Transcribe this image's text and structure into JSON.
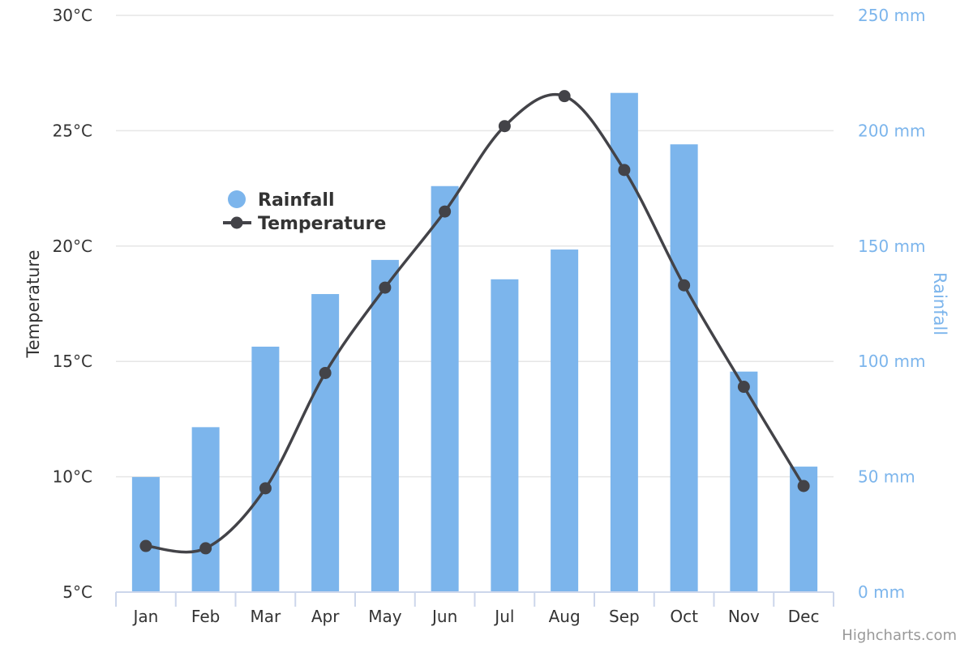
{
  "chart_data": {
    "type": "bar",
    "categories": [
      "Jan",
      "Feb",
      "Mar",
      "Apr",
      "May",
      "Jun",
      "Jul",
      "Aug",
      "Sep",
      "Oct",
      "Nov",
      "Dec"
    ],
    "series": [
      {
        "name": "Rainfall",
        "type": "bar",
        "axis": "right",
        "color": "#7cb5ec",
        "values": [
          49.9,
          71.5,
          106.4,
          129.2,
          144.0,
          176.0,
          135.6,
          148.5,
          216.4,
          194.1,
          95.6,
          54.4
        ]
      },
      {
        "name": "Temperature",
        "type": "line",
        "axis": "left",
        "color": "#434348",
        "values": [
          7.0,
          6.9,
          9.5,
          14.5,
          18.2,
          21.5,
          25.2,
          26.5,
          23.3,
          18.3,
          13.9,
          9.6
        ]
      }
    ],
    "left_axis": {
      "title": "Temperature",
      "ylim": [
        5,
        30
      ],
      "ticks": [
        "5°C",
        "10°C",
        "15°C",
        "20°C",
        "25°C",
        "30°C"
      ]
    },
    "right_axis": {
      "title": "Rainfall",
      "ylim": [
        0,
        250
      ],
      "ticks": [
        "0 mm",
        "50 mm",
        "100 mm",
        "150 mm",
        "200 mm",
        "250 mm"
      ]
    },
    "xlabel": "",
    "grid": true,
    "legend_position": "top-left inside plot",
    "credits": "Highcharts.com"
  }
}
